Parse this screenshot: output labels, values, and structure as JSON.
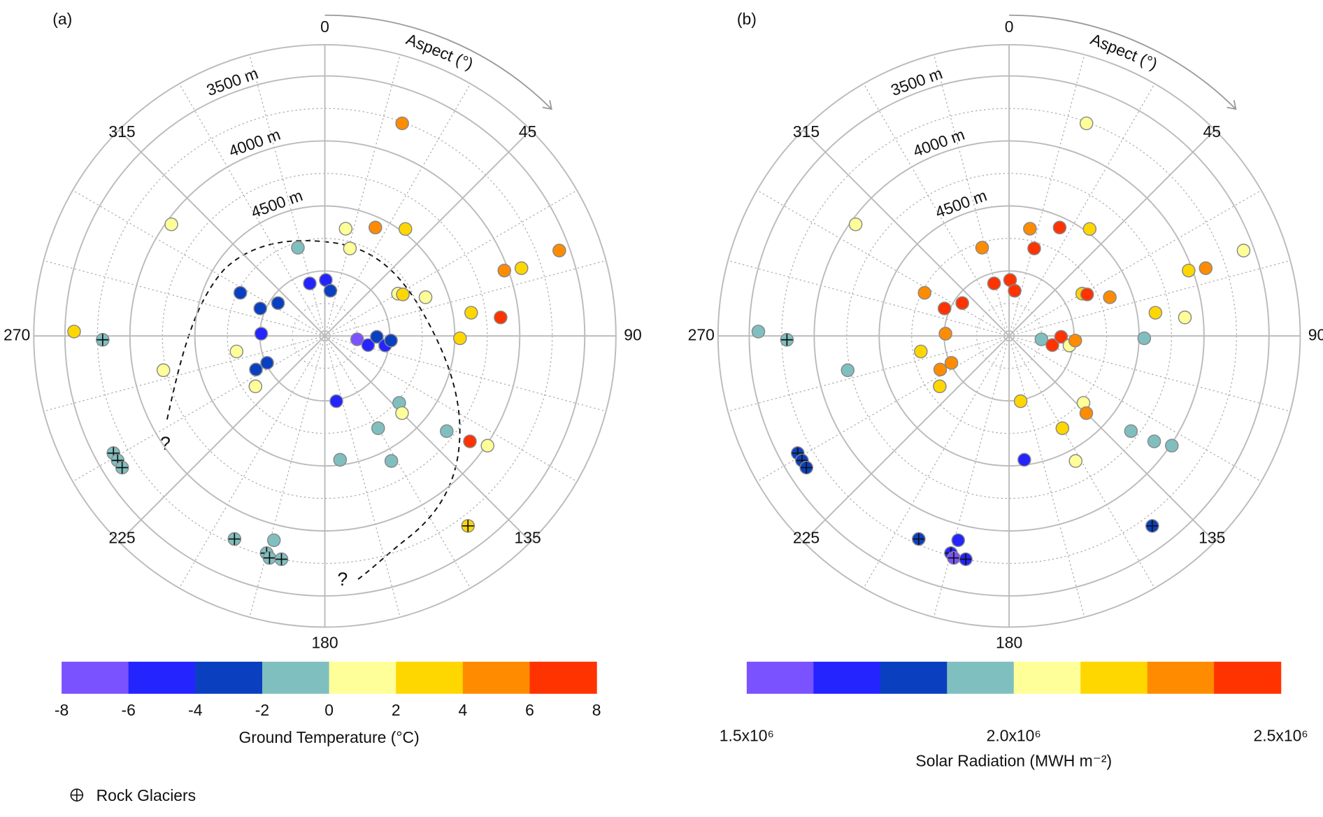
{
  "chart_data": [
    {
      "type": "polar_scatter",
      "panel_label": "(a)",
      "theta_label": "Aspect (°)",
      "theta": [
        20,
        11,
        25,
        37,
        16,
        343,
        344,
        1,
        7,
        297,
        305,
        293,
        272,
        260,
        244,
        245,
        234,
        306,
        271,
        269,
        258,
        241,
        239,
        237,
        204,
        194,
        195,
        194,
        191,
        96,
        102,
        91,
        99,
        94,
        170,
        60,
        62,
        69,
        81,
        91,
        84,
        70,
        71,
        70,
        132,
        135,
        150,
        173,
        152,
        128,
        126,
        124,
        143
      ],
      "elevation": [
        3760,
        4660,
        4580,
        4470,
        4800,
        4790,
        5080,
        5070,
        5150,
        4770,
        5060,
        4960,
        5010,
        4810,
        4910,
        5010,
        4840,
        4040,
        3570,
        3790,
        4230,
        3640,
        3640,
        3640,
        3790,
        3880,
        3770,
        3740,
        3750,
        5250,
        5160,
        5100,
        5030,
        4990,
        4990,
        4850,
        4820,
        4670,
        4360,
        4460,
        4140,
        4030,
        3900,
        3580,
        4730,
        4660,
        4680,
        4540,
        4410,
        4310,
        4120,
        3990,
        3670
      ],
      "values": [
        5,
        1,
        5,
        3,
        1,
        -1,
        -5,
        -5,
        -3,
        -3,
        -3,
        -3,
        -5,
        1,
        -3,
        -3,
        1,
        1,
        3,
        -1,
        1,
        -1,
        -1,
        -1,
        -1,
        -1,
        -1,
        -1,
        -1,
        -7,
        -5,
        -3,
        -5,
        -3,
        -5,
        1,
        3,
        1,
        3,
        3,
        7,
        5,
        3,
        5,
        -1,
        1,
        -1,
        -1,
        -1,
        -1,
        7,
        1,
        3
      ],
      "rock_glacier": [
        false,
        false,
        false,
        false,
        false,
        false,
        false,
        false,
        false,
        false,
        false,
        false,
        false,
        false,
        false,
        false,
        false,
        false,
        false,
        true,
        false,
        true,
        true,
        true,
        true,
        false,
        true,
        true,
        true,
        false,
        false,
        false,
        false,
        false,
        false,
        false,
        false,
        false,
        false,
        false,
        false,
        false,
        false,
        false,
        false,
        false,
        false,
        false,
        false,
        false,
        false,
        false,
        true
      ],
      "rlim": [
        5500,
        3260
      ],
      "rticks": [
        {
          "value": 3500,
          "label": "3500 m"
        },
        {
          "value": 4000,
          "label": "4000 m"
        },
        {
          "value": 4500,
          "label": "4500 m"
        }
      ],
      "rgrid": [
        3500,
        4000,
        4500,
        5000
      ],
      "rgrid_minor": [
        3750,
        4250,
        4750,
        5250
      ],
      "thetaticks": [
        0,
        45,
        90,
        135,
        180,
        225,
        270,
        315
      ],
      "theta_minor": [
        15,
        30,
        60,
        75,
        105,
        120,
        150,
        165,
        195,
        210,
        240,
        255,
        285,
        300,
        330,
        345
      ],
      "colorbar": {
        "label": "Ground Temperature (°C)",
        "bounds": [
          -8,
          -6,
          -4,
          -2,
          0,
          2,
          4,
          6,
          8
        ],
        "colors": [
          "#7b52ff",
          "#2424ff",
          "#0a40c0",
          "#80bfbf",
          "#ffff99",
          "#ffd700",
          "#ff8c00",
          "#ff3300"
        ],
        "ticks": [
          -8,
          -6,
          -4,
          -2,
          0,
          2,
          4,
          6,
          8
        ]
      },
      "annotations": [
        "?",
        "?"
      ],
      "legend_label": "Rock Glaciers"
    },
    {
      "type": "polar_scatter",
      "panel_label": "(b)",
      "theta_label": "Aspect (°)",
      "theta": [
        20,
        11,
        25,
        37,
        16,
        343,
        344,
        1,
        7,
        297,
        305,
        293,
        272,
        260,
        244,
        245,
        234,
        306,
        271,
        269,
        258,
        241,
        239,
        237,
        204,
        194,
        195,
        194,
        191,
        96,
        102,
        91,
        99,
        94,
        170,
        60,
        62,
        69,
        81,
        91,
        84,
        70,
        71,
        70,
        132,
        135,
        150,
        173,
        152,
        128,
        126,
        124,
        143
      ],
      "elevation": [
        3760,
        4660,
        4580,
        4470,
        4800,
        4790,
        5080,
        5070,
        5150,
        4770,
        5060,
        4960,
        5010,
        4810,
        4910,
        5010,
        4840,
        4040,
        3570,
        3790,
        4230,
        3640,
        3640,
        3640,
        3790,
        3880,
        3770,
        3740,
        3750,
        5250,
        5160,
        5100,
        5030,
        4990,
        4990,
        4850,
        4820,
        4670,
        4360,
        4460,
        4140,
        4030,
        3900,
        3580,
        4730,
        4660,
        4680,
        4540,
        4410,
        4310,
        4120,
        3990,
        3670
      ],
      "values": [
        2060000,
        2310000,
        2440000,
        2190000,
        2440000,
        2310000,
        2440000,
        2440000,
        2440000,
        2310000,
        2440000,
        2440000,
        2310000,
        2190000,
        2310000,
        2310000,
        2190000,
        2060000,
        1940000,
        1940000,
        1940000,
        1810000,
        1810000,
        1810000,
        1810000,
        1690000,
        1690000,
        1560000,
        1690000,
        1940000,
        2440000,
        2440000,
        2060000,
        2310000,
        2190000,
        2190000,
        2440000,
        2310000,
        2190000,
        1940000,
        2060000,
        2190000,
        2310000,
        2060000,
        2060000,
        2310000,
        2190000,
        1690000,
        2060000,
        1940000,
        1940000,
        1940000,
        1810000
      ],
      "rock_glacier": [
        false,
        false,
        false,
        false,
        false,
        false,
        false,
        false,
        false,
        false,
        false,
        false,
        false,
        false,
        false,
        false,
        false,
        false,
        false,
        true,
        false,
        true,
        true,
        true,
        true,
        false,
        true,
        true,
        true,
        false,
        false,
        false,
        false,
        false,
        false,
        false,
        false,
        false,
        false,
        false,
        false,
        false,
        false,
        false,
        false,
        false,
        false,
        false,
        false,
        false,
        false,
        false,
        true
      ],
      "rlim": [
        5500,
        3260
      ],
      "rticks": [
        {
          "value": 3500,
          "label": "3500 m"
        },
        {
          "value": 4000,
          "label": "4000 m"
        },
        {
          "value": 4500,
          "label": "4500 m"
        }
      ],
      "rgrid": [
        3500,
        4000,
        4500,
        5000
      ],
      "rgrid_minor": [
        3750,
        4250,
        4750,
        5250
      ],
      "thetaticks": [
        0,
        45,
        90,
        135,
        180,
        225,
        270,
        315
      ],
      "theta_minor": [
        15,
        30,
        60,
        75,
        105,
        120,
        150,
        165,
        195,
        210,
        240,
        255,
        285,
        300,
        330,
        345
      ],
      "colorbar": {
        "label": "Solar Radiation (MWH m⁻²)",
        "bounds": [
          1500000,
          1625000,
          1750000,
          1875000,
          2000000,
          2125000,
          2250000,
          2375000,
          2500000
        ],
        "colors": [
          "#7b52ff",
          "#2424ff",
          "#0a40c0",
          "#80bfbf",
          "#ffff99",
          "#ffd700",
          "#ff8c00",
          "#ff3300"
        ],
        "ticks": [
          {
            "value": 1500000,
            "label": "1.5x10⁶"
          },
          {
            "value": 2000000,
            "label": "2.0x10⁶"
          },
          {
            "value": 2500000,
            "label": "2.5x10⁶"
          }
        ]
      }
    }
  ]
}
